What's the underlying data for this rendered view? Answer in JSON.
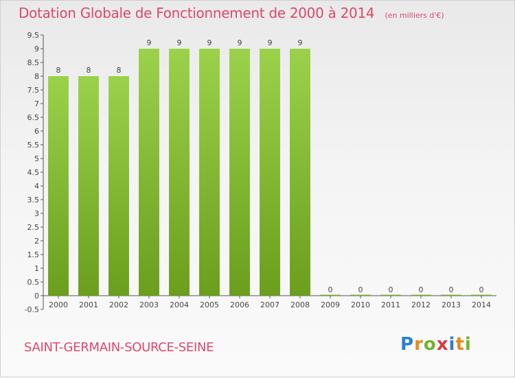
{
  "header": {
    "title": "Dotation Globale de Fonctionnement de 2000 à 2014",
    "subtitle": "(en milliers d'€)"
  },
  "commune": "SAINT-GERMAIN-SOURCE-SEINE",
  "logo": {
    "letters": [
      "P",
      "r",
      "o",
      "x",
      "i",
      "t",
      "i"
    ],
    "colors": [
      "#2a7fd4",
      "#e38b1c",
      "#6fb52c",
      "#d63a3a",
      "#2a7fd4",
      "#e38b1c",
      "#6fb52c"
    ]
  },
  "colors": {
    "bar_top": "#9bd24a",
    "bar_bottom": "#6a9e1c",
    "accent": "#d84a6a"
  },
  "chart_data": {
    "type": "bar",
    "categories": [
      "2000",
      "2001",
      "2002",
      "2003",
      "2004",
      "2005",
      "2006",
      "2007",
      "2008",
      "2009",
      "2010",
      "2011",
      "2012",
      "2013",
      "2014"
    ],
    "values": [
      8,
      8,
      8,
      9,
      9,
      9,
      9,
      9,
      9,
      0,
      0,
      0,
      0,
      0,
      0
    ],
    "data_labels": [
      "8",
      "8",
      "8",
      "9",
      "9",
      "9",
      "9",
      "9",
      "9",
      "0",
      "0",
      "0",
      "0",
      "0",
      "0"
    ],
    "y_ticks": [
      "-0.5",
      "0",
      "0.5",
      "1",
      "1.5",
      "2",
      "2.5",
      "3",
      "3.5",
      "4",
      "4.5",
      "5",
      "5.5",
      "6",
      "6.5",
      "7",
      "7.5",
      "8",
      "8.5",
      "9",
      "9.5"
    ],
    "ylim": [
      -0.5,
      9.5
    ],
    "grid": false,
    "legend": "none"
  }
}
